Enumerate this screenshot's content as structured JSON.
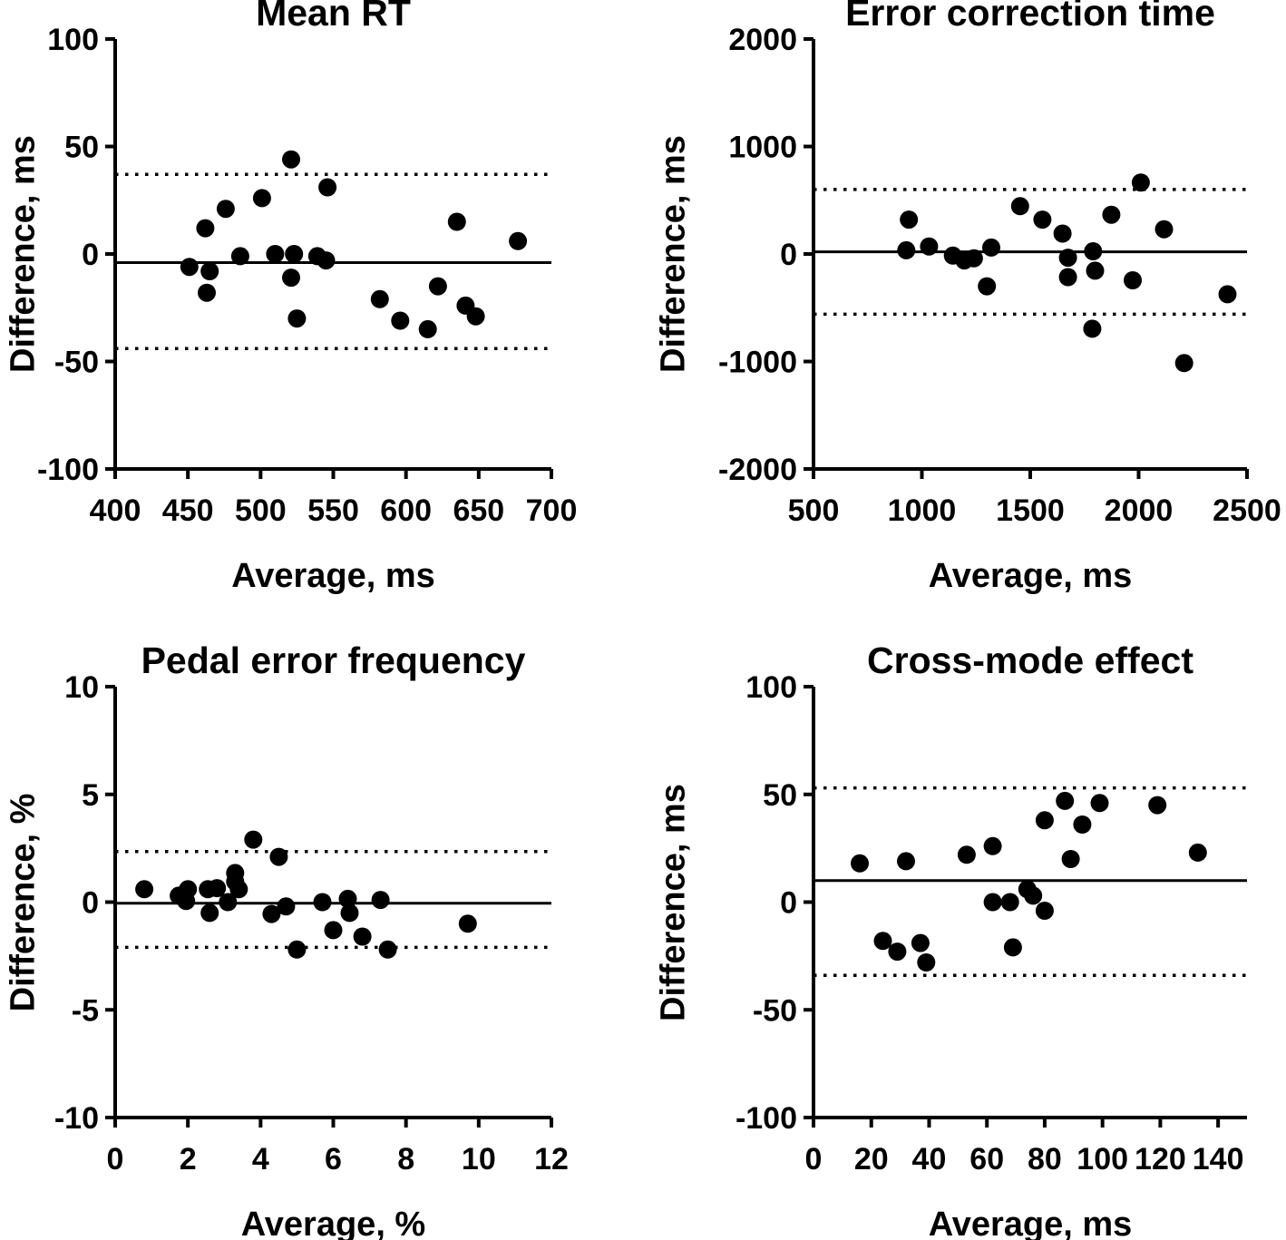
{
  "figure": {
    "background_color": "#ffffff",
    "ink_color": "#000000",
    "marker_color": "#000000",
    "marker_shape": "circle",
    "description": "Bland-Altman agreement plots, 2x2 panel figure"
  },
  "chart_data": [
    {
      "id": "mean-rt",
      "type": "scatter",
      "title": "Mean RT",
      "xlabel": "Average, ms",
      "ylabel": "Difference, ms",
      "xlim": [
        400,
        700
      ],
      "xticks": [
        400,
        450,
        500,
        550,
        600,
        650,
        700
      ],
      "ylim": [
        -100,
        100
      ],
      "yticks": [
        100,
        50,
        0,
        -50,
        -100
      ],
      "grid": false,
      "legend": false,
      "mean_line": -4,
      "upper_limit": 37,
      "lower_limit": -44,
      "points": [
        [
          451,
          -6
        ],
        [
          462,
          12
        ],
        [
          463,
          -18
        ],
        [
          465,
          -8
        ],
        [
          476,
          21
        ],
        [
          486,
          -1
        ],
        [
          501,
          26
        ],
        [
          510,
          0
        ],
        [
          521,
          44
        ],
        [
          521,
          -11
        ],
        [
          523,
          0
        ],
        [
          525,
          -30
        ],
        [
          539,
          -1
        ],
        [
          545,
          -3
        ],
        [
          546,
          31
        ],
        [
          582,
          -21
        ],
        [
          596,
          -31
        ],
        [
          615,
          -35
        ],
        [
          622,
          -15
        ],
        [
          635,
          15
        ],
        [
          641,
          -24
        ],
        [
          648,
          -29
        ],
        [
          677,
          6
        ]
      ]
    },
    {
      "id": "error-correction-time",
      "type": "scatter",
      "title": "Error correction time",
      "xlabel": "Average, ms",
      "ylabel": "Difference, ms",
      "xlim": [
        500,
        2500
      ],
      "xticks": [
        500,
        1000,
        1500,
        2000,
        2500
      ],
      "ylim": [
        -2000,
        2000
      ],
      "yticks": [
        2000,
        1000,
        0,
        -1000,
        -2000
      ],
      "grid": false,
      "legend": false,
      "mean_line": 20,
      "upper_limit": 600,
      "lower_limit": -560,
      "points": [
        [
          928,
          35
        ],
        [
          940,
          320
        ],
        [
          1033,
          70
        ],
        [
          1143,
          -15
        ],
        [
          1196,
          -60
        ],
        [
          1240,
          -40
        ],
        [
          1300,
          -300
        ],
        [
          1320,
          60
        ],
        [
          1453,
          445
        ],
        [
          1556,
          320
        ],
        [
          1649,
          190
        ],
        [
          1674,
          -35
        ],
        [
          1674,
          -215
        ],
        [
          1786,
          -695
        ],
        [
          1790,
          25
        ],
        [
          1799,
          -155
        ],
        [
          1874,
          365
        ],
        [
          1973,
          -245
        ],
        [
          2010,
          665
        ],
        [
          2117,
          230
        ],
        [
          2210,
          -1015
        ],
        [
          2410,
          -375
        ]
      ]
    },
    {
      "id": "pedal-error-frequency",
      "type": "scatter",
      "title": "Pedal error frequency",
      "xlabel": "Average, %",
      "ylabel": "Difference, %",
      "xlim": [
        0,
        12
      ],
      "xticks": [
        0,
        2,
        4,
        6,
        8,
        10,
        12
      ],
      "ylim": [
        -10,
        10
      ],
      "yticks": [
        10,
        5,
        0,
        -5,
        -10
      ],
      "grid": false,
      "legend": false,
      "mean_line": -0.05,
      "upper_limit": 2.35,
      "lower_limit": -2.1,
      "points": [
        [
          0.8,
          0.6
        ],
        [
          1.75,
          0.3
        ],
        [
          1.95,
          0.05
        ],
        [
          2.0,
          0.6
        ],
        [
          2.55,
          0.6
        ],
        [
          2.8,
          0.65
        ],
        [
          2.6,
          -0.5
        ],
        [
          3.1,
          0.0
        ],
        [
          3.3,
          0.95
        ],
        [
          3.3,
          1.35
        ],
        [
          3.4,
          0.6
        ],
        [
          3.8,
          2.9
        ],
        [
          4.3,
          -0.55
        ],
        [
          4.5,
          2.1
        ],
        [
          4.7,
          -0.2
        ],
        [
          5.0,
          -2.2
        ],
        [
          5.7,
          0.0
        ],
        [
          6.0,
          -1.3
        ],
        [
          6.4,
          0.15
        ],
        [
          6.45,
          -0.5
        ],
        [
          6.8,
          -1.6
        ],
        [
          7.3,
          0.1
        ],
        [
          7.5,
          -2.2
        ],
        [
          9.7,
          -1.0
        ]
      ]
    },
    {
      "id": "cross-mode-effect",
      "type": "scatter",
      "title": "Cross-mode effect",
      "xlabel": "Average, ms",
      "ylabel": "Difference, ms",
      "xlim": [
        0,
        150
      ],
      "xticks": [
        0,
        20,
        40,
        60,
        80,
        100,
        120,
        140
      ],
      "ylim": [
        -100,
        100
      ],
      "yticks": [
        100,
        50,
        0,
        -50,
        -100
      ],
      "grid": false,
      "legend": false,
      "mean_line": 10,
      "upper_limit": 53,
      "lower_limit": -34,
      "points": [
        [
          16,
          18
        ],
        [
          24,
          -18
        ],
        [
          29,
          -23
        ],
        [
          32,
          19
        ],
        [
          37,
          -19
        ],
        [
          39,
          -28
        ],
        [
          53,
          22
        ],
        [
          62,
          26
        ],
        [
          62,
          0
        ],
        [
          68,
          0
        ],
        [
          69,
          -21
        ],
        [
          74,
          6
        ],
        [
          76,
          3
        ],
        [
          80,
          38
        ],
        [
          80,
          -4
        ],
        [
          87,
          47
        ],
        [
          89,
          20
        ],
        [
          93,
          36
        ],
        [
          99,
          46
        ],
        [
          119,
          45
        ],
        [
          133,
          23
        ]
      ]
    }
  ]
}
